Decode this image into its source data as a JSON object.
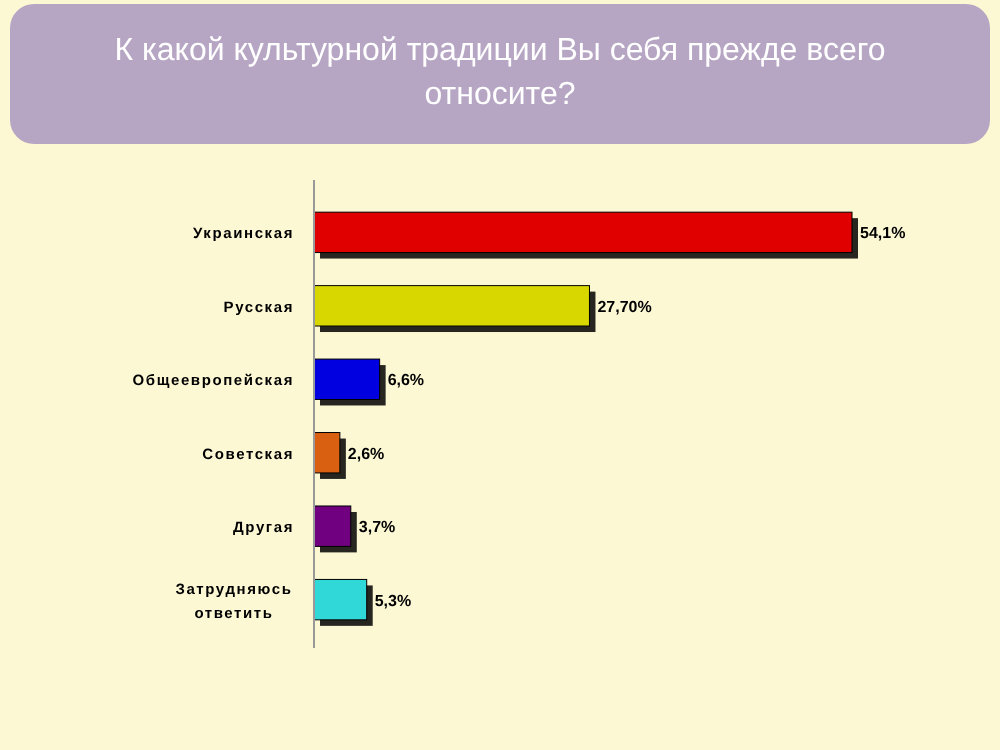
{
  "chart_data": {
    "type": "bar",
    "orientation": "horizontal",
    "title": "К какой культурной традиции Вы себя прежде всего относите?",
    "categories": [
      "Украинская",
      "Русская",
      "Общеевропейская",
      "Советская",
      "Другая",
      "Затрудняюсь ответить"
    ],
    "values": [
      54.1,
      27.7,
      6.6,
      2.6,
      3.7,
      5.3
    ],
    "value_labels": [
      "54,1%",
      "27,70%",
      "6,6%",
      "2,6%",
      "3,7%",
      "5,3%"
    ],
    "colors": [
      "#e00000",
      "#d8d800",
      "#0000e0",
      "#d86010",
      "#700080",
      "#30d8d8"
    ]
  }
}
